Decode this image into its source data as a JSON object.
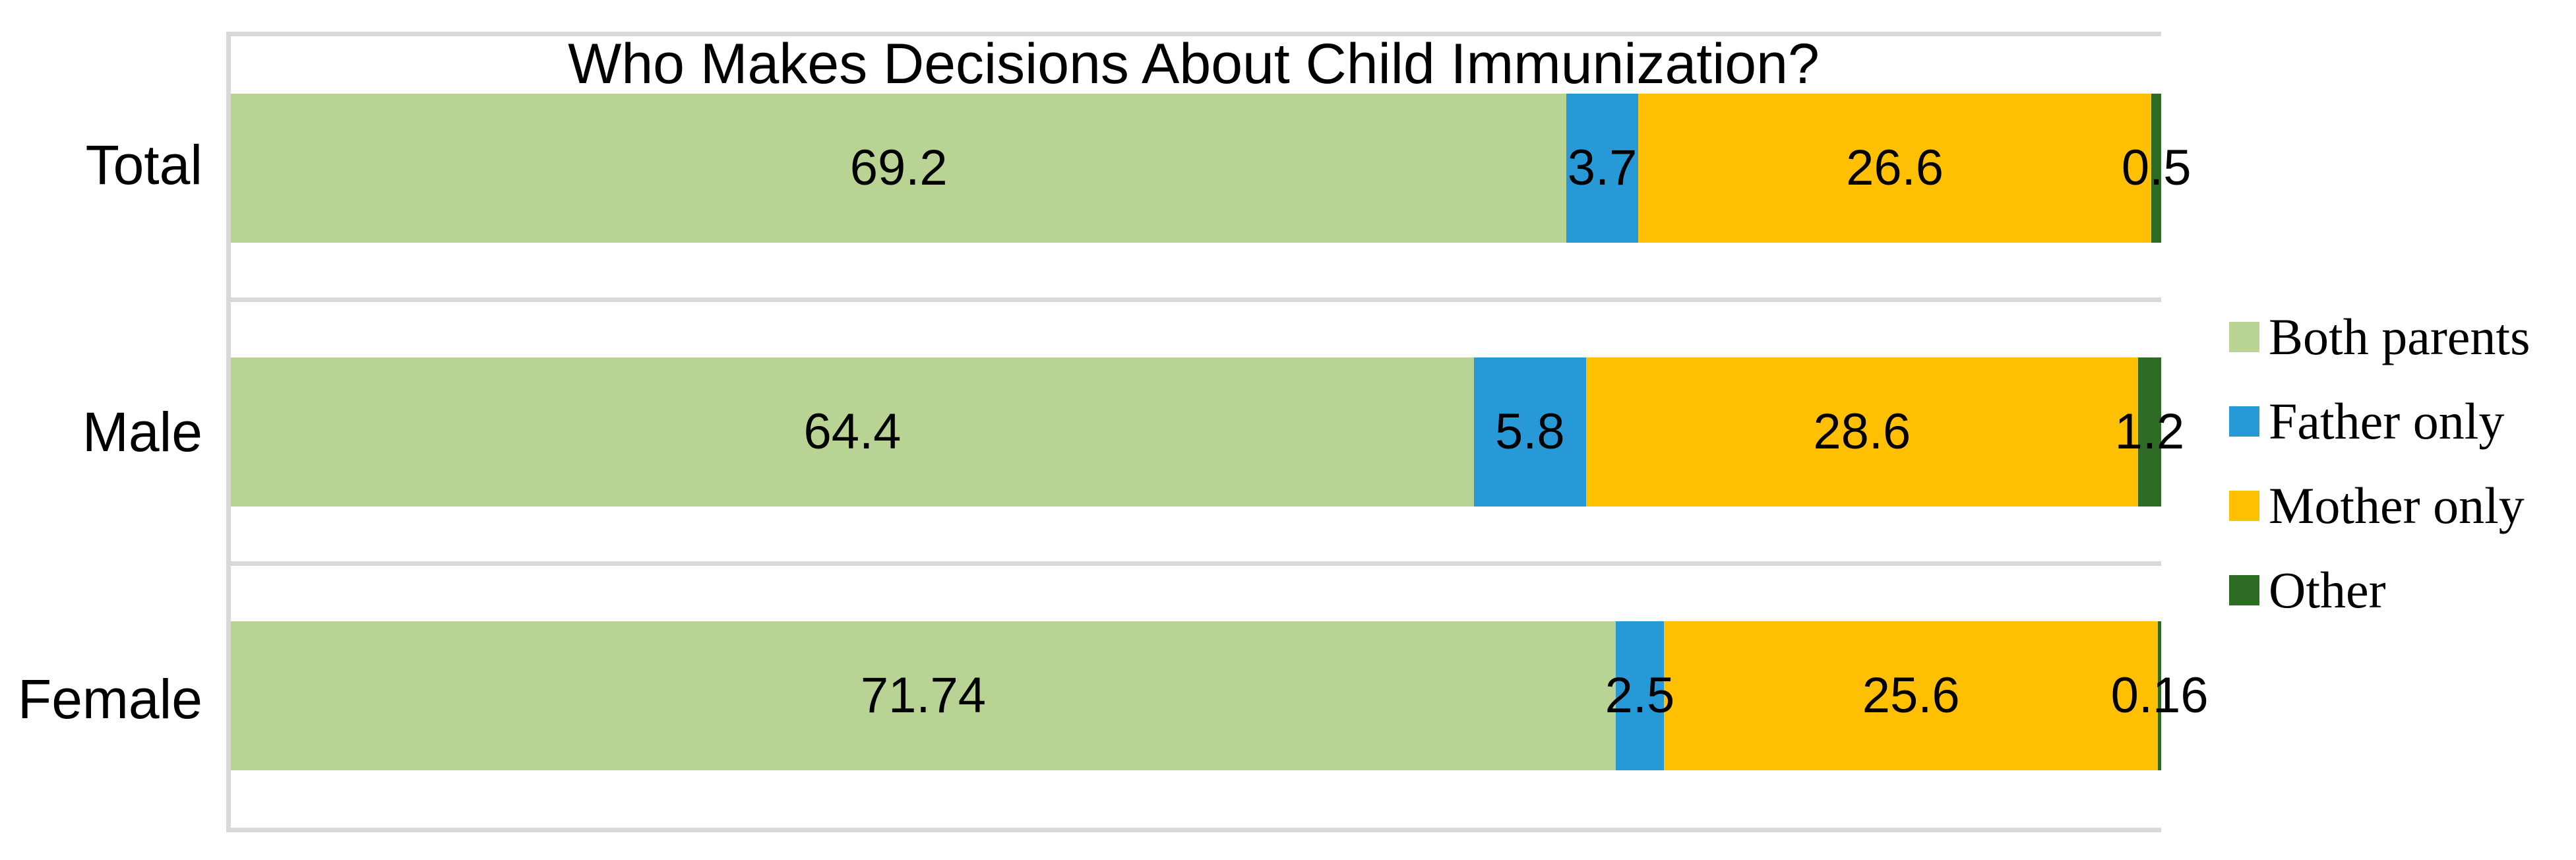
{
  "chart_data": {
    "type": "bar",
    "orientation": "horizontal",
    "stacked": true,
    "title": "Who Makes Decisions About Child Immunization?",
    "categories": [
      "Total",
      "Male",
      "Female"
    ],
    "series": [
      {
        "name": "Both parents",
        "color": "#B9D395",
        "values": [
          69.2,
          64.4,
          71.74
        ]
      },
      {
        "name": "Father only",
        "color": "#2899D7",
        "values": [
          3.7,
          5.8,
          2.5
        ]
      },
      {
        "name": "Mother only",
        "color": "#FFC003",
        "values": [
          26.6,
          28.6,
          25.6
        ]
      },
      {
        "name": "Other",
        "color": "#2E6B24",
        "values": [
          0.5,
          1.2,
          0.16
        ]
      }
    ],
    "data_labels": [
      [
        "69.2",
        "3.7",
        "26.6",
        "0.5"
      ],
      [
        "64.4",
        "5.8",
        "28.6",
        "1.2"
      ],
      [
        "71.74",
        "2.5",
        "25.6",
        "0.16"
      ]
    ],
    "xlim": [
      0,
      100
    ],
    "legend_position": "right",
    "legend_labels": [
      "Both parents",
      "Father only",
      "Mother only",
      "Other"
    ],
    "frame_color": "#D9D9D9",
    "axis_line_color": "#D9D9D9",
    "background_color": "#FFFFFF",
    "label_color": "#000000"
  }
}
